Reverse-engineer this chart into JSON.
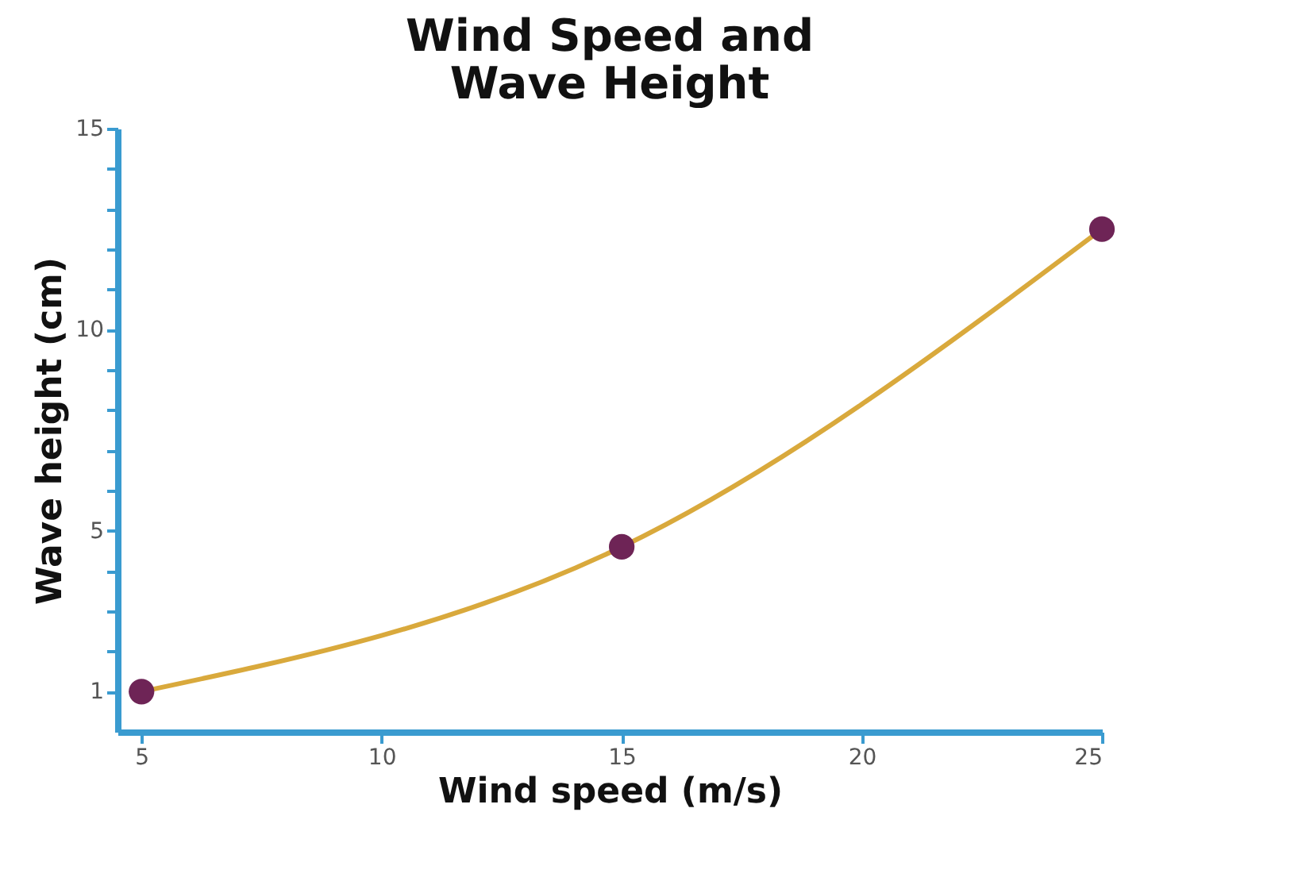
{
  "chart_data": {
    "type": "line",
    "title": [
      "Wind Speed and",
      "Wave Height"
    ],
    "xlabel": "Wind speed (m/s)",
    "ylabel": "Wave height (cm)",
    "x": [
      5,
      15,
      25
    ],
    "series": [
      {
        "color": "#d9a93c",
        "values": [
          1,
          4.6,
          12.5
        ]
      }
    ],
    "marker": "circle",
    "xlim": [
      4.5,
      25
    ],
    "xticks": [
      5,
      10,
      15,
      20,
      25
    ],
    "ylim": [
      0,
      15
    ],
    "yticks": [
      1,
      {
        "value": 2,
        "label": null
      },
      {
        "value": 3,
        "label": null
      },
      {
        "value": 4,
        "label": null
      },
      5,
      {
        "value": 6,
        "label": null
      },
      {
        "value": 7,
        "label": null
      },
      {
        "value": 8,
        "label": null
      },
      {
        "value": 9,
        "label": null
      },
      10,
      {
        "value": 11,
        "label": null
      },
      {
        "value": 12,
        "label": null
      },
      {
        "value": 13,
        "label": null
      },
      {
        "value": 14,
        "label": null
      },
      15
    ],
    "grid": false
  }
}
